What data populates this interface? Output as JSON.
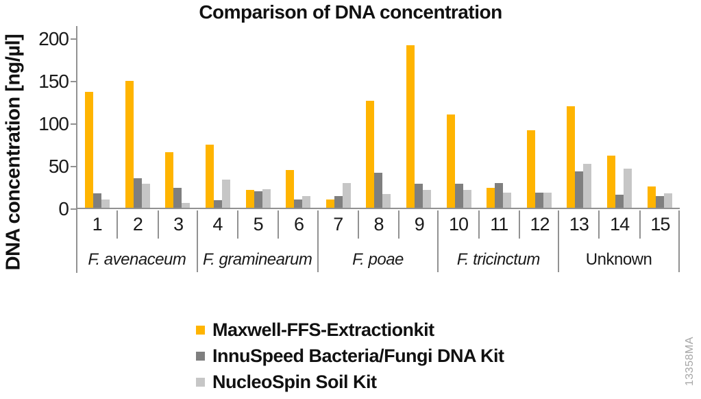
{
  "title": "Comparison of DNA concentration",
  "watermark": "13358MA",
  "colors": {
    "maxwell_orange": "#FFB400",
    "innuspeed_dark_gray": "#7F7F7F",
    "nucleospin_light_gray": "#C6C6C6",
    "axis_gray": "#919191",
    "text_black": "#111111"
  },
  "chart_data": {
    "type": "bar",
    "title": "Comparison of DNA concentration",
    "xlabel": "",
    "ylabel": "DNA concentration [ng/µl]",
    "ylim": [
      0,
      200
    ],
    "yticks": [
      0,
      50,
      100,
      150,
      200
    ],
    "grid": false,
    "legend_position": "bottom-left",
    "categories": [
      "1",
      "2",
      "3",
      "4",
      "5",
      "6",
      "7",
      "8",
      "9",
      "10",
      "11",
      "12",
      "13",
      "14",
      "15"
    ],
    "groups": [
      {
        "label": "F. avenaceum",
        "samples": [
          "1",
          "2",
          "3"
        ],
        "italic": true
      },
      {
        "label": "F. graminearum",
        "samples": [
          "4",
          "5",
          "6"
        ],
        "italic": true
      },
      {
        "label": "F. poae",
        "samples": [
          "7",
          "8",
          "9"
        ],
        "italic": true
      },
      {
        "label": "F. tricinctum",
        "samples": [
          "10",
          "11",
          "12"
        ],
        "italic": true
      },
      {
        "label": "Unknown",
        "samples": [
          "13",
          "14",
          "15"
        ],
        "italic": false
      }
    ],
    "series": [
      {
        "name": "Maxwell-FFS-Extractionkit",
        "color": "#FFB400",
        "values": [
          136,
          149,
          65,
          74,
          21,
          44,
          10,
          126,
          191,
          110,
          23,
          91,
          119,
          61,
          25
        ]
      },
      {
        "name": "InnuSpeed Bacteria/Fungi DNA Kit",
        "color": "#7F7F7F",
        "values": [
          17,
          35,
          23,
          9,
          19,
          10,
          14,
          41,
          28,
          28,
          29,
          18,
          43,
          15,
          14
        ]
      },
      {
        "name": "NucleoSpin Soil Kit",
        "color": "#C6C6C6",
        "values": [
          10,
          28,
          6,
          33,
          22,
          14,
          29,
          16,
          21,
          21,
          18,
          18,
          52,
          46,
          17
        ]
      }
    ]
  }
}
